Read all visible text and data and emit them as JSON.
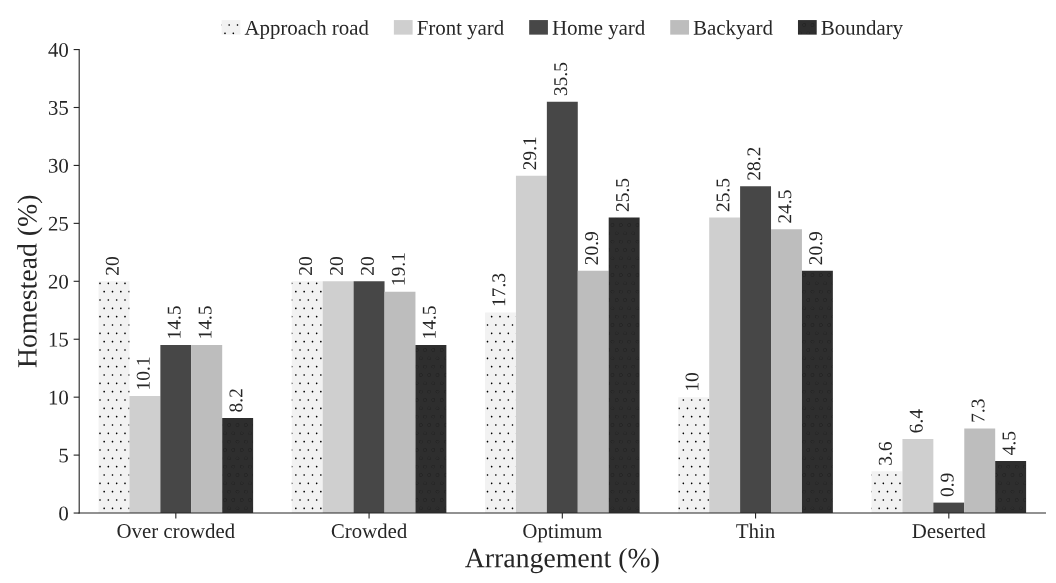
{
  "chart_data": {
    "type": "bar",
    "xlabel": "Arrangement (%)",
    "ylabel": "Homestead (%)",
    "categories": [
      "Over crowded",
      "Crowded",
      "Optimum",
      "Thin",
      "Deserted"
    ],
    "series": [
      {
        "name": "Approach road",
        "color": "#f2f2f2",
        "values": [
          20,
          20,
          17.3,
          10,
          3.6
        ]
      },
      {
        "name": "Front yard",
        "color": "#cfcfcf",
        "values": [
          10.1,
          20,
          29.1,
          25.5,
          6.4
        ]
      },
      {
        "name": "Home yard",
        "color": "#474747",
        "values": [
          14.5,
          20,
          35.5,
          28.2,
          0.9
        ]
      },
      {
        "name": "Backyard",
        "color": "#bdbdbd",
        "values": [
          14.5,
          19.1,
          20.9,
          24.5,
          7.3
        ]
      },
      {
        "name": "Boundary",
        "color": "#2e2e2e",
        "values": [
          8.2,
          14.5,
          25.5,
          20.9,
          4.5
        ]
      }
    ],
    "ylim": [
      0,
      40
    ],
    "yticks": [
      0,
      5,
      10,
      15,
      20,
      25,
      30,
      35,
      40
    ],
    "data_labels": true,
    "legend": "top",
    "grid": false
  }
}
